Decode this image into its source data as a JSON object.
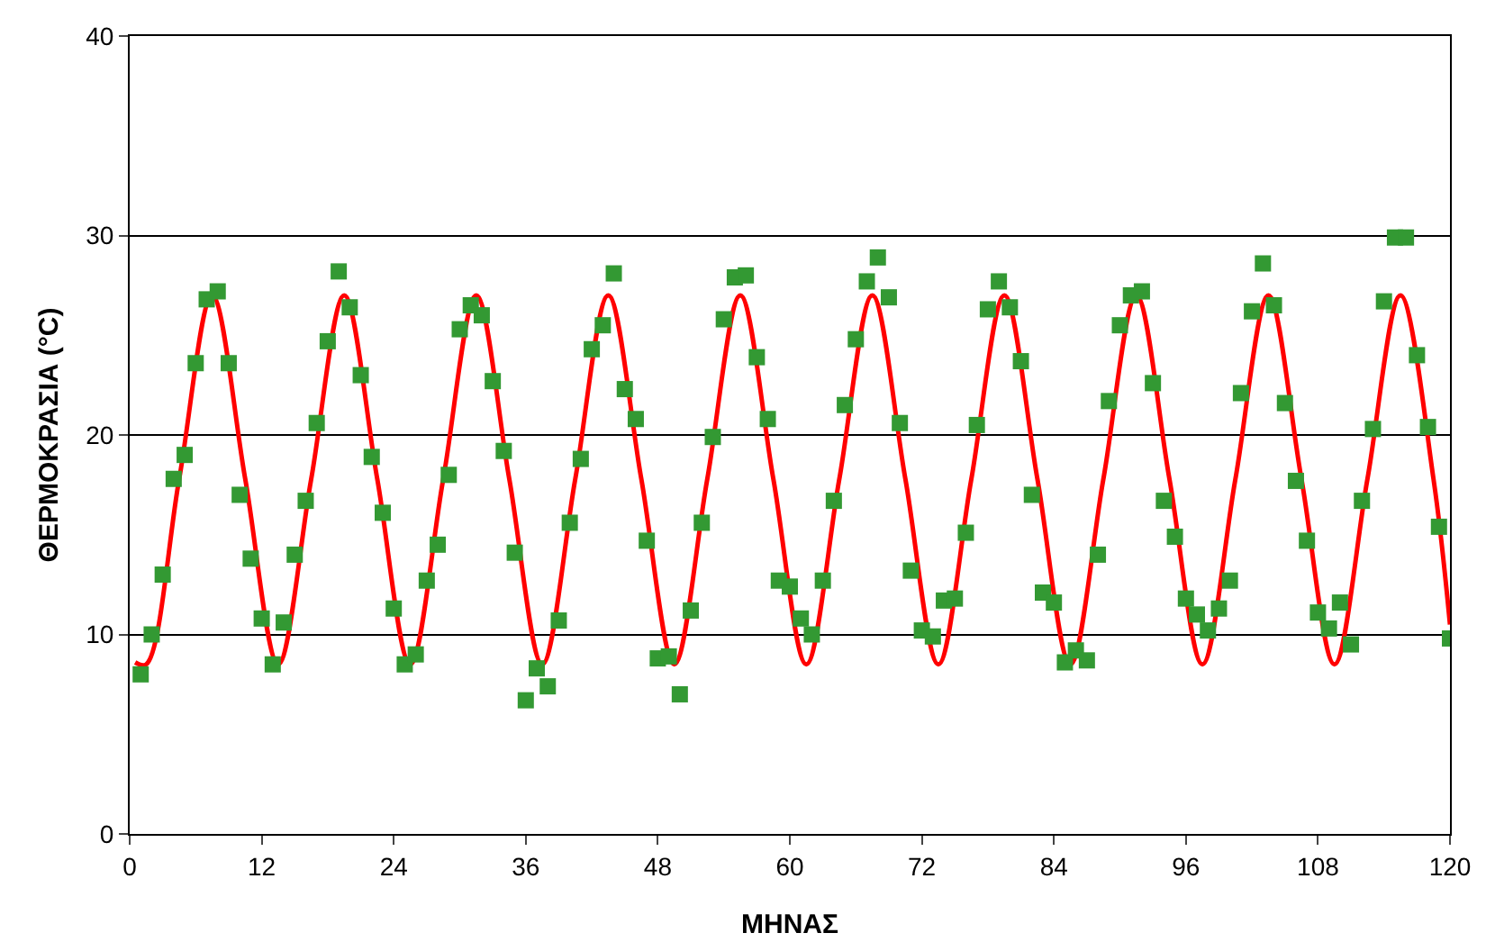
{
  "chart_data": {
    "type": "scatter",
    "xlabel": "ΜΗΝΑΣ",
    "ylabel": "ΘΕΡΜΟΚΡΑΣΙΑ (°C)",
    "xlim": [
      0,
      120
    ],
    "xticks": [
      0,
      12,
      24,
      36,
      48,
      60,
      72,
      84,
      96,
      108,
      120
    ],
    "ylim": [
      0,
      40
    ],
    "yticks": [
      0,
      10,
      20,
      30,
      40
    ],
    "grid": "y",
    "series": [
      {
        "marker": "square",
        "color": "#339933",
        "x": [
          1,
          2,
          3,
          4,
          5,
          6,
          7,
          8,
          9,
          10,
          11,
          12,
          13,
          14,
          15,
          16,
          17,
          18,
          19,
          20,
          21,
          22,
          23,
          24,
          25,
          26,
          27,
          28,
          29,
          30,
          31,
          32,
          33,
          34,
          35,
          36,
          37,
          38,
          39,
          40,
          41,
          42,
          43,
          44,
          45,
          46,
          47,
          48,
          49,
          50,
          51,
          52,
          53,
          54,
          55,
          56,
          57,
          58,
          59,
          60,
          61,
          62,
          63,
          64,
          65,
          66,
          67,
          68,
          69,
          70,
          71,
          72,
          73,
          74,
          75,
          76,
          77,
          78,
          79,
          80,
          81,
          82,
          83,
          84,
          85,
          86,
          87,
          88,
          89,
          90,
          91,
          92,
          93,
          94,
          95,
          96,
          97,
          98,
          99,
          100,
          101,
          102,
          103,
          104,
          105,
          106,
          107,
          108,
          109,
          110,
          111,
          112,
          113,
          114,
          115,
          116,
          117,
          118,
          119,
          120
        ],
        "values": [
          8.0,
          10.0,
          13.0,
          17.8,
          19.0,
          23.6,
          26.8,
          27.2,
          23.6,
          17.0,
          13.8,
          10.8,
          8.5,
          10.6,
          14.0,
          16.7,
          20.6,
          24.7,
          28.2,
          26.4,
          23.0,
          18.9,
          16.1,
          11.3,
          8.5,
          9.0,
          12.7,
          14.5,
          18.0,
          25.3,
          26.5,
          26.0,
          22.7,
          19.2,
          14.1,
          6.7,
          8.3,
          7.4,
          10.7,
          15.6,
          18.8,
          24.3,
          25.5,
          28.1,
          22.3,
          20.8,
          14.7,
          8.8,
          8.9,
          7.0,
          11.2,
          15.6,
          19.9,
          25.8,
          27.9,
          28.0,
          23.9,
          20.8,
          12.7,
          12.4,
          10.8,
          10.0,
          12.7,
          16.7,
          21.5,
          24.8,
          27.7,
          28.9,
          26.9,
          20.6,
          13.2,
          10.2,
          9.9,
          11.7,
          11.8,
          15.1,
          20.5,
          26.3,
          27.7,
          26.4,
          23.7,
          17.0,
          12.1,
          11.6,
          8.6,
          9.2,
          8.7,
          14.0,
          21.7,
          25.5,
          27.0,
          27.2,
          22.6,
          16.7,
          14.9,
          11.8,
          11.0,
          10.2,
          11.3,
          12.7,
          22.1,
          26.2,
          28.6,
          26.5,
          21.6,
          17.7,
          14.7,
          11.1,
          10.3,
          11.6,
          9.5,
          16.7,
          20.3,
          26.7,
          29.9,
          29.9,
          24.0,
          20.4,
          15.4,
          9.8
        ]
      },
      {
        "type": "line",
        "marker": "none",
        "color": "#ff0000",
        "x": [
          0.5,
          1.5,
          4.5,
          7.5,
          10.5,
          13.5,
          16.5,
          19.5,
          22.5,
          25.5,
          28.5,
          31.5,
          34.5,
          37.5,
          40.5,
          43.5,
          46.5,
          49.5,
          52.5,
          55.5,
          58.5,
          61.5,
          64.5,
          67.5,
          70.5,
          73.5,
          76.5,
          79.5,
          82.5,
          85.5,
          88.5,
          91.5,
          94.5,
          97.5,
          100.5,
          103.5,
          106.5,
          109.5,
          112.5,
          115.5,
          118.5,
          120
        ],
        "values": [
          8.6,
          8.5,
          17.8,
          27,
          17.8,
          8.5,
          17.8,
          27,
          17.8,
          8.5,
          17.8,
          27,
          17.8,
          8.5,
          17.8,
          27,
          17.8,
          8.5,
          17.8,
          27,
          17.8,
          8.5,
          17.8,
          27,
          17.8,
          8.5,
          17.8,
          27,
          17.8,
          8.5,
          17.8,
          27,
          17.8,
          8.5,
          17.8,
          27,
          17.8,
          8.5,
          17.8,
          27,
          17.8,
          10.5
        ]
      }
    ]
  }
}
